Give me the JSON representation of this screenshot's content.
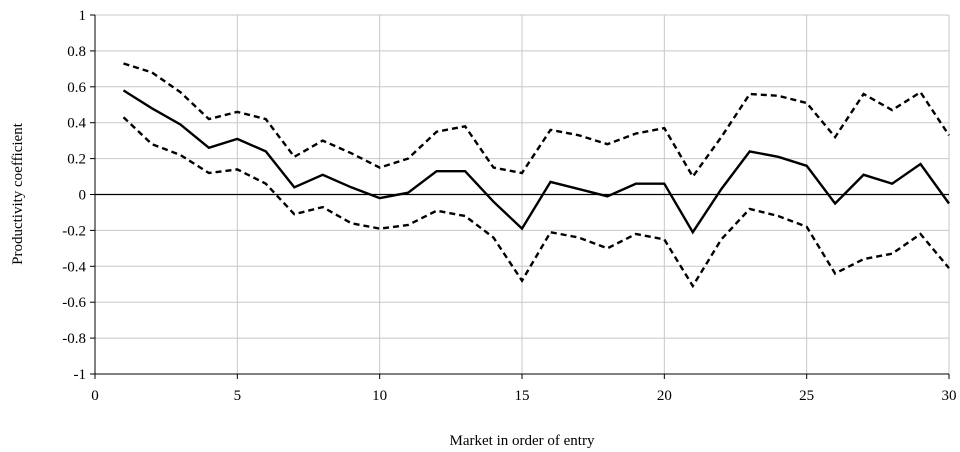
{
  "chart_data": {
    "type": "line",
    "title": "",
    "xlabel": "Market in order of entry",
    "ylabel": "Productivity coefficient",
    "xlim": [
      0,
      30
    ],
    "ylim": [
      -1,
      1
    ],
    "x_ticks": [
      0,
      5,
      10,
      15,
      20,
      25,
      30
    ],
    "y_ticks": [
      1,
      0.8,
      0.6,
      0.4,
      0.2,
      0,
      -0.2,
      -0.4,
      -0.6,
      -0.8,
      -1
    ],
    "x_tick_labels": [
      "0",
      "5",
      "10",
      "15",
      "20",
      "25",
      "30"
    ],
    "y_tick_labels": [
      "1",
      "0.8",
      "0.6",
      "0.4",
      "0.2",
      "0",
      "-0.2",
      "-0.4",
      "-0.6",
      "-0.8",
      "-1"
    ],
    "grid": true,
    "legend": "none",
    "x": [
      1,
      2,
      3,
      4,
      5,
      6,
      7,
      8,
      9,
      10,
      11,
      12,
      13,
      14,
      15,
      16,
      17,
      18,
      19,
      20,
      21,
      22,
      23,
      24,
      25,
      26,
      27,
      28,
      29,
      30
    ],
    "series": [
      {
        "style": "solid",
        "color": "#000000",
        "values": [
          0.58,
          0.48,
          0.39,
          0.26,
          0.31,
          0.24,
          0.04,
          0.11,
          0.04,
          -0.02,
          0.01,
          0.13,
          0.13,
          -0.04,
          -0.19,
          0.07,
          0.03,
          -0.01,
          0.06,
          0.06,
          -0.21,
          0.03,
          0.24,
          0.21,
          0.16,
          -0.05,
          0.11,
          0.06,
          0.17,
          -0.05
        ]
      },
      {
        "style": "dashed",
        "color": "#000000",
        "values": [
          0.73,
          0.68,
          0.57,
          0.42,
          0.46,
          0.42,
          0.21,
          0.3,
          0.23,
          0.15,
          0.2,
          0.35,
          0.38,
          0.15,
          0.12,
          0.36,
          0.33,
          0.28,
          0.34,
          0.37,
          0.1,
          0.32,
          0.56,
          0.55,
          0.51,
          0.32,
          0.56,
          0.47,
          0.57,
          0.33
        ]
      },
      {
        "style": "dashed",
        "color": "#000000",
        "values": [
          0.43,
          0.28,
          0.22,
          0.12,
          0.14,
          0.06,
          -0.11,
          -0.07,
          -0.16,
          -0.19,
          -0.17,
          -0.09,
          -0.12,
          -0.24,
          -0.48,
          -0.21,
          -0.24,
          -0.3,
          -0.22,
          -0.25,
          -0.51,
          -0.25,
          -0.08,
          -0.12,
          -0.18,
          -0.44,
          -0.36,
          -0.33,
          -0.22,
          -0.41
        ]
      }
    ]
  }
}
